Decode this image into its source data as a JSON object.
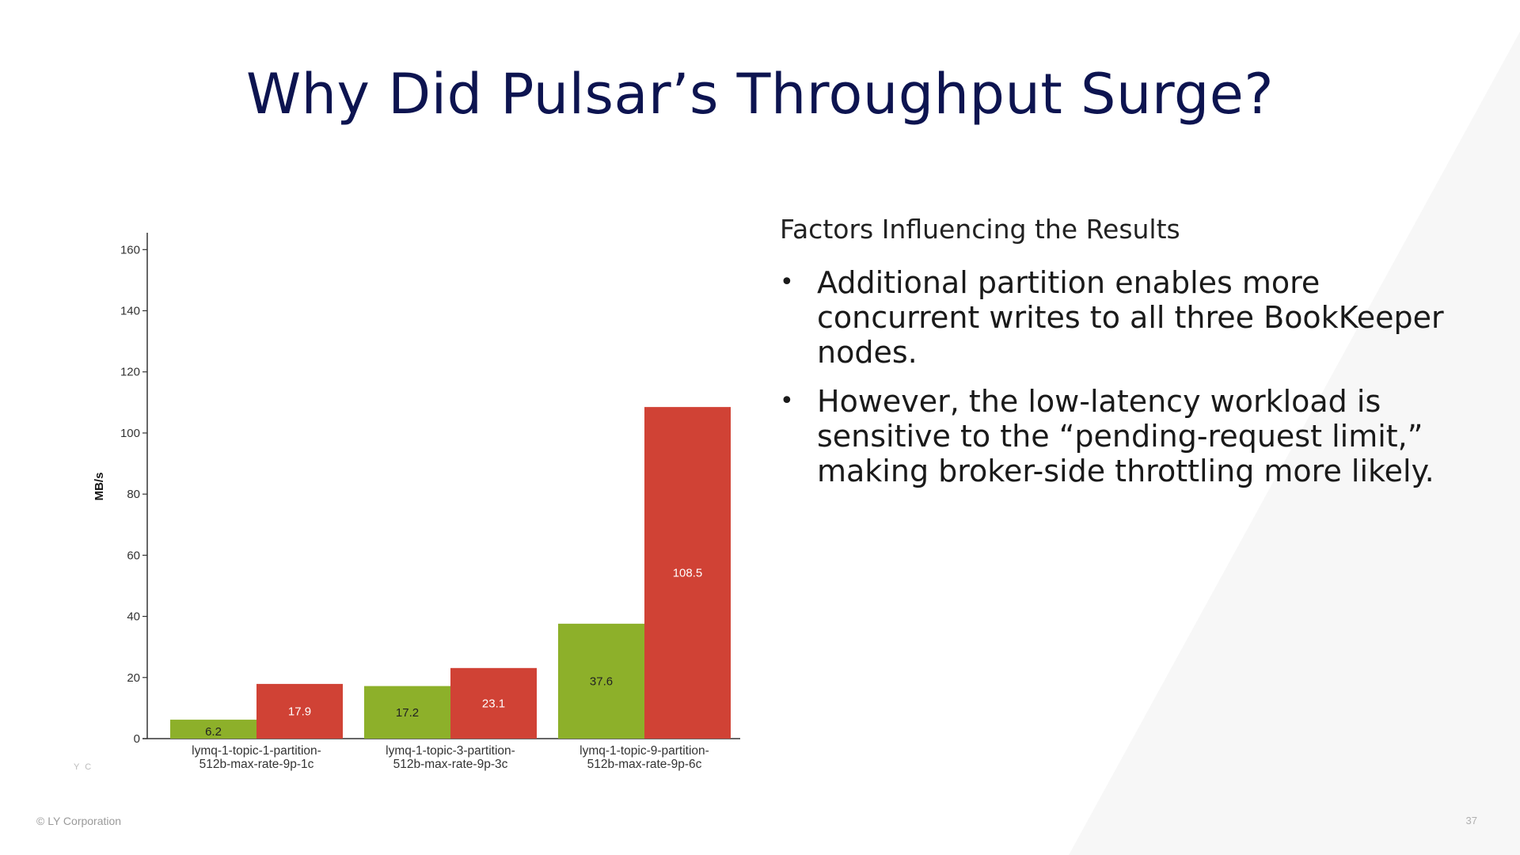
{
  "slide": {
    "title": "Why Did Pulsar’s Throughput Surge?",
    "subheading": "Factors Influencing the Results",
    "bullets": [
      "Additional partition enables more concurrent writes to all three BookKeeper nodes.",
      " However, the low-latency workload is sensitive to the “pending-request limit,” making broker-side throttling more likely."
    ],
    "bullet_symbol": "•",
    "footer": "© LY Corporation",
    "page_number": "37",
    "watermark": "Y C"
  },
  "chart_data": {
    "type": "bar",
    "title": "",
    "xlabel": "",
    "ylabel": "MB/s",
    "ylim": [
      0,
      165
    ],
    "yticks": [
      0,
      20,
      40,
      60,
      80,
      100,
      120,
      140,
      160
    ],
    "grid": false,
    "categories": [
      [
        "lymq-1-topic-1-partition-",
        "512b-max-rate-9p-1c"
      ],
      [
        "lymq-1-topic-3-partition-",
        "512b-max-rate-9p-3c"
      ],
      [
        "lymq-1-topic-9-partition-",
        "512b-max-rate-9p-6c"
      ]
    ],
    "series": [
      {
        "color": "#8db02a",
        "values": [
          6.2,
          17.2,
          37.6
        ],
        "labels": [
          "6.2",
          "17.2",
          "37.6"
        ]
      },
      {
        "color": "#d04235",
        "values": [
          17.9,
          23.1,
          108.5
        ],
        "labels": [
          "17.9",
          "23.1",
          "108.5"
        ]
      }
    ]
  }
}
